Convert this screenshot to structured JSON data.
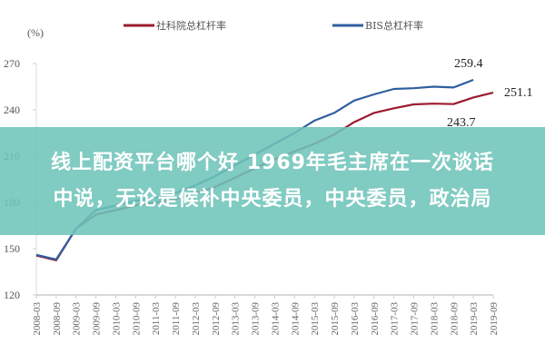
{
  "chart_data": {
    "type": "line",
    "title": "",
    "xlabel": "",
    "ylabel": "(%)",
    "ylim": [
      120,
      270
    ],
    "yticks": [
      120,
      150,
      180,
      210,
      240,
      270
    ],
    "grid": false,
    "legend_position": "top",
    "categories": [
      "2008-03",
      "2008-09",
      "2009-03",
      "2009-09",
      "2010-03",
      "2010-09",
      "2011-03",
      "2011-09",
      "2012-03",
      "2012-09",
      "2013-03",
      "2013-09",
      "2014-03",
      "2014-09",
      "2015-03",
      "2015-09",
      "2016-03",
      "2016-09",
      "2017-03",
      "2017-09",
      "2018-03",
      "2018-09",
      "2019-03",
      "2019-09"
    ],
    "series": [
      {
        "name": "社科院总杠杆率",
        "color": "#9b1b30",
        "values": [
          145.5,
          142.5,
          163,
          172,
          175,
          178,
          180,
          182,
          186,
          190,
          196,
          202,
          208,
          213,
          218,
          224,
          232,
          238,
          241,
          243.5,
          244,
          243.7,
          248,
          251.1
        ]
      },
      {
        "name": "BIS总杠杆率",
        "color": "#2f5f9e",
        "values": [
          146,
          143,
          163,
          175,
          178,
          181,
          183,
          186,
          191,
          197,
          204,
          211,
          218,
          225,
          233,
          238,
          246,
          250,
          253.5,
          254,
          255,
          254.5,
          259.4,
          null
        ]
      }
    ],
    "annotations": [
      {
        "text": "259.4",
        "series": "BIS总杠杆率",
        "x": "2019-03"
      },
      {
        "text": "251.1",
        "series": "社科院总杠杆率",
        "x": "2019-09"
      },
      {
        "text": "243.7",
        "series": "社科院总杠杆率",
        "x": "2018-09"
      }
    ]
  },
  "legend": {
    "items": [
      {
        "label": "社科院总杠杆率",
        "color": "#9b1b30"
      },
      {
        "label": "BIS总杠杆率",
        "color": "#2f5f9e"
      }
    ]
  },
  "axis": {
    "y_unit": "(%)"
  },
  "overlay": {
    "line1": "线上配资平台哪个好 1969年毛主席在一次谈话",
    "line2": "中说，无论是候补中央委员，中央委员，政治局",
    "color": "#6ec4ba"
  }
}
